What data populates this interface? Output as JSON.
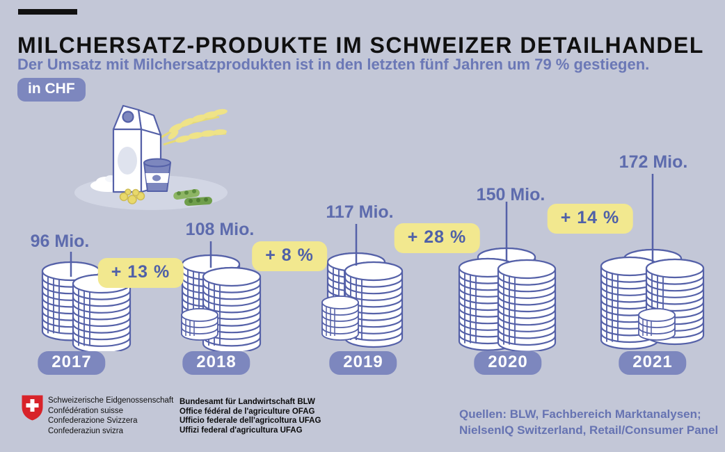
{
  "header": {
    "title": "MILCHERSATZ-PRODUKTE IM SCHWEIZER DETAILHANDEL",
    "subtitle": "Der Umsatz mit Milchersatzprodukten ist in den letzten fünf Jahren um 79 % gestiegen.",
    "unit_badge": "in CHF"
  },
  "chart_data": {
    "type": "bar",
    "variant": "pictograph-coin-stacks",
    "title": "Milchersatz-Produkte im Schweizer Detailhandel",
    "unit": "CHF Mio.",
    "categories": [
      "2017",
      "2018",
      "2019",
      "2020",
      "2021"
    ],
    "values": [
      96,
      108,
      117,
      150,
      172
    ],
    "value_labels": [
      "96 Mio.",
      "108 Mio.",
      "117 Mio.",
      "150 Mio.",
      "172 Mio."
    ],
    "pct_changes": [
      "+ 13 %",
      "+ 8 %",
      "+ 28 %",
      "+ 14 %"
    ],
    "legend_position": "none",
    "grid": false
  },
  "footer": {
    "confederation_lines": [
      "Schweizerische Eidgenossenschaft",
      "Confédération suisse",
      "Confederazione Svizzera",
      "Confederaziun svizra"
    ],
    "office_lines": [
      "Bundesamt für Landwirtschaft BLW",
      "Office fédéral de l'agriculture OFAG",
      "Ufficio federale dell'agricoltura UFAG",
      "Uffizi federal d'agricultura UFAG"
    ],
    "sources": [
      "Quellen: BLW, Fachbereich Marktanalysen;",
      "NielsenIQ Switzerland, Retail/Consumer Panel"
    ]
  },
  "colors": {
    "background": "#c3c7d7",
    "accent_purple": "#7d87be",
    "text_purple": "#5d6bad",
    "stroke_purple": "#5561a8",
    "badge_yellow": "#f2e88f",
    "illustration_yellow": "#efe387",
    "soy_green": "#7fae57",
    "swiss_red": "#d8232a"
  }
}
